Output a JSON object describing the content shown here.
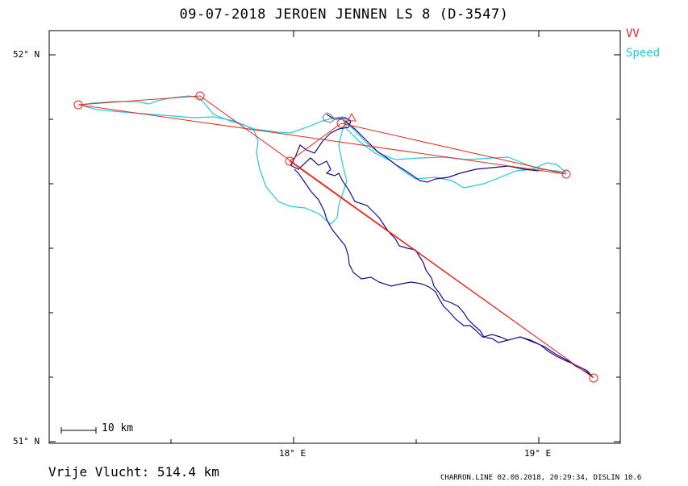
{
  "header": {
    "title": "09-07-2018    JEROEN JENNEN    LS 8 (D-3547)"
  },
  "legend": {
    "items": [
      {
        "label": "VV",
        "color": "#e8281e"
      },
      {
        "label": "Speed",
        "color": "#22c8e0"
      }
    ]
  },
  "axes": {
    "y_labels": [
      "52° N",
      "51° N"
    ],
    "x_labels": [
      "18° E",
      "19° E"
    ]
  },
  "scale_bar": {
    "label": "10 km"
  },
  "summary": {
    "distance_label": "Vrije Vlucht:  514.4 km"
  },
  "footer": {
    "text": "CHARRON.LINE 02.08.2018, 20:29:34, DISLIN 10.6"
  },
  "colors": {
    "track_dark": "#1a0a8c",
    "track_speed": "#22c8e0",
    "task_line": "#e8281e",
    "start_grey": "#888888"
  },
  "map": {
    "lon_range": [
      17.0,
      19.35
    ],
    "lat_range": [
      51.0,
      52.05
    ],
    "turnpoints": [
      {
        "lat": 51.875,
        "lon": 17.12
      },
      {
        "lat": 51.897,
        "lon": 17.62
      },
      {
        "lat": 51.725,
        "lon": 17.99
      },
      {
        "lat": 51.169,
        "lon": 19.23
      },
      {
        "lat": 51.717,
        "lon": 19.11
      },
      {
        "lat": 51.82,
        "lon": 18.2
      }
    ]
  }
}
